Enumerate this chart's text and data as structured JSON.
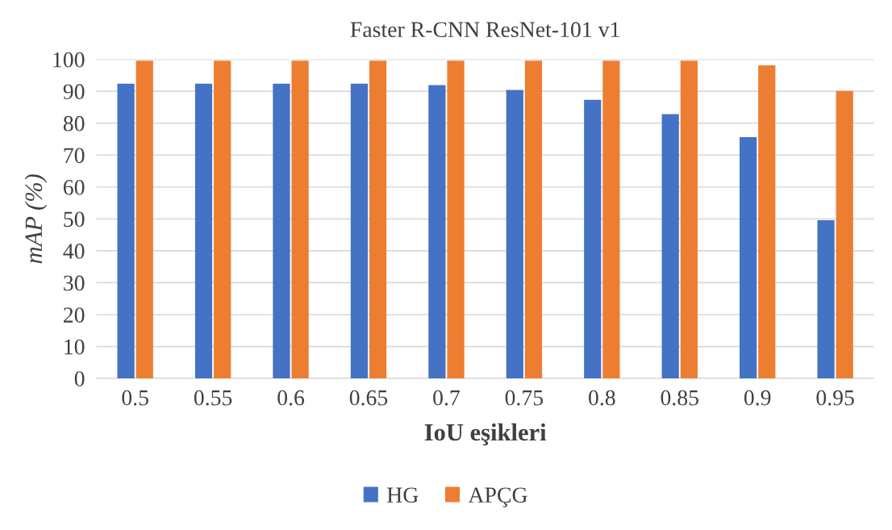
{
  "chart_data": {
    "type": "bar",
    "title": "Faster R-CNN ResNet-101 v1",
    "xlabel": "IoU eşikleri",
    "ylabel": "mAP (%)",
    "categories": [
      "0.5",
      "0.55",
      "0.6",
      "0.65",
      "0.7",
      "0.75",
      "0.8",
      "0.85",
      "0.9",
      "0.95"
    ],
    "series": [
      {
        "name": "HG",
        "color": "#4472c4",
        "values": [
          92.4,
          92.4,
          92.4,
          92.4,
          91.9,
          90.4,
          87.3,
          82.8,
          75.6,
          49.6
        ]
      },
      {
        "name": "APÇG",
        "color": "#ed7d31",
        "values": [
          99.6,
          99.6,
          99.6,
          99.6,
          99.6,
          99.6,
          99.6,
          99.6,
          98.1,
          90.1
        ]
      }
    ],
    "ylim": [
      0,
      100
    ],
    "yticks": [
      0,
      10,
      20,
      30,
      40,
      50,
      60,
      70,
      80,
      90,
      100
    ],
    "grid": "y",
    "legend": "bottom"
  }
}
